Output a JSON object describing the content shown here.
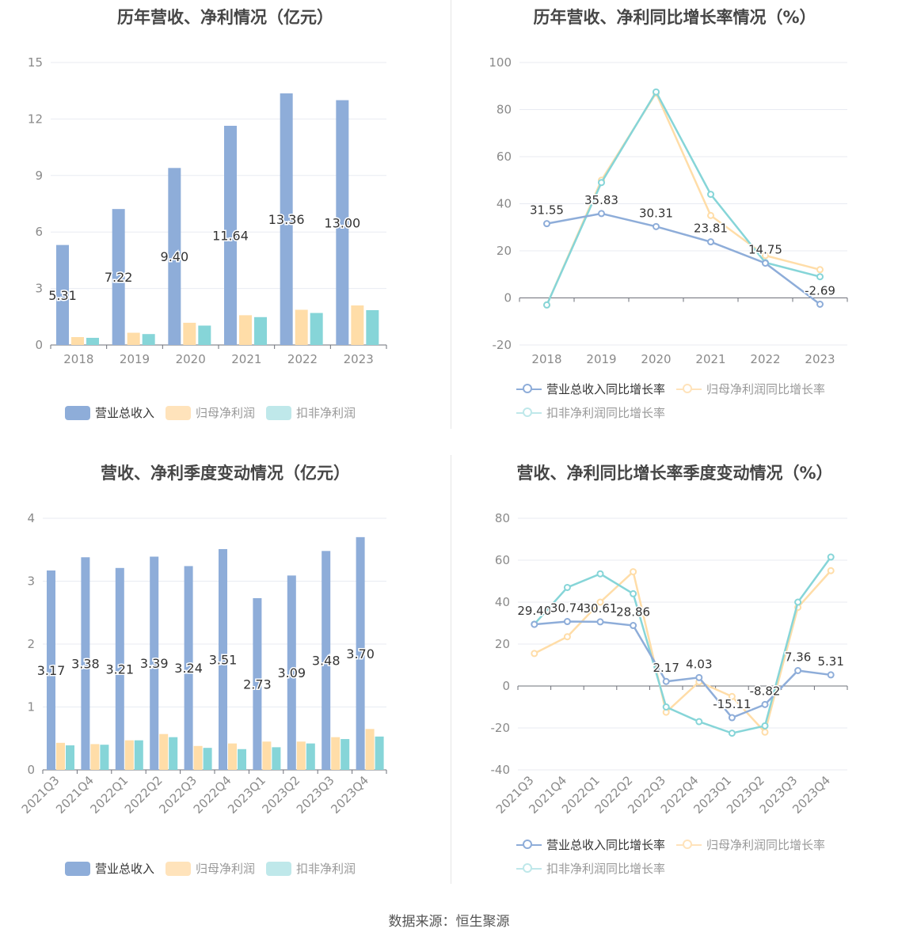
{
  "source": "数据来源：恒生聚源",
  "colors": {
    "revenue": "#8eadd9",
    "net_profit": "#ffdda8",
    "deducted_profit": "#86d5d8",
    "axis_text": "#8a8a8a",
    "grid": "#e8ebf2"
  },
  "chart_data": [
    {
      "id": "annual_amounts",
      "type": "bar",
      "title": "历年营收、净利情况（亿元）",
      "categories": [
        "2018",
        "2019",
        "2020",
        "2021",
        "2022",
        "2023"
      ],
      "ylim": [
        0,
        15
      ],
      "yticks": [
        0,
        3,
        6,
        9,
        12,
        15
      ],
      "grid": true,
      "legend_position": "bottom",
      "series": [
        {
          "name": "营业总收入",
          "values": [
            5.31,
            7.22,
            9.4,
            11.64,
            13.36,
            13.0
          ],
          "labels": [
            "5.31",
            "7.22",
            "9.40",
            "11.64",
            "13.36",
            "13.00"
          ]
        },
        {
          "name": "归母净利润",
          "values": [
            0.42,
            0.65,
            1.18,
            1.58,
            1.87,
            2.1
          ]
        },
        {
          "name": "扣非净利润",
          "values": [
            0.38,
            0.58,
            1.03,
            1.48,
            1.7,
            1.85
          ]
        }
      ]
    },
    {
      "id": "annual_growth",
      "type": "line",
      "title": "历年营收、净利同比增长率情况（%）",
      "categories": [
        "2018",
        "2019",
        "2020",
        "2021",
        "2022",
        "2023"
      ],
      "ylim": [
        -20,
        100
      ],
      "yticks": [
        -20,
        0,
        20,
        40,
        60,
        80,
        100
      ],
      "grid": true,
      "legend_position": "bottom",
      "series": [
        {
          "name": "营业总收入同比增长率",
          "values": [
            31.55,
            35.83,
            30.31,
            23.81,
            14.75,
            -2.69
          ],
          "labels": [
            "31.55",
            "35.83",
            "30.31",
            "23.81",
            "14.75",
            "-2.69"
          ]
        },
        {
          "name": "归母净利润同比增长率",
          "values": [
            -3,
            50,
            87,
            35,
            18,
            12
          ]
        },
        {
          "name": "扣非净利润同比增长率",
          "values": [
            -3,
            49,
            87.5,
            44,
            15,
            9
          ]
        }
      ]
    },
    {
      "id": "quarterly_amounts",
      "type": "bar",
      "title": "营收、净利季度变动情况（亿元）",
      "categories": [
        "2021Q3",
        "2021Q4",
        "2022Q1",
        "2022Q2",
        "2022Q3",
        "2022Q4",
        "2023Q1",
        "2023Q2",
        "2023Q3",
        "2023Q4"
      ],
      "ylim": [
        0,
        4
      ],
      "yticks": [
        0,
        1,
        2,
        3,
        4
      ],
      "grid": true,
      "legend_position": "bottom",
      "series": [
        {
          "name": "营业总收入",
          "values": [
            3.17,
            3.38,
            3.21,
            3.39,
            3.24,
            3.51,
            2.73,
            3.09,
            3.48,
            3.7
          ],
          "labels": [
            "3.17",
            "3.38",
            "3.21",
            "3.39",
            "3.24",
            "3.51",
            "2.73",
            "3.09",
            "3.48",
            "3.70"
          ]
        },
        {
          "name": "归母净利润",
          "values": [
            0.43,
            0.41,
            0.47,
            0.57,
            0.38,
            0.42,
            0.45,
            0.45,
            0.52,
            0.65
          ]
        },
        {
          "name": "扣非净利润",
          "values": [
            0.39,
            0.4,
            0.47,
            0.52,
            0.35,
            0.33,
            0.36,
            0.42,
            0.49,
            0.53
          ]
        }
      ]
    },
    {
      "id": "quarterly_growth",
      "type": "line",
      "title": "营收、净利同比增长率季度变动情况（%）",
      "categories": [
        "2021Q3",
        "2021Q4",
        "2022Q1",
        "2022Q2",
        "2022Q3",
        "2022Q4",
        "2023Q1",
        "2023Q2",
        "2023Q3",
        "2023Q4"
      ],
      "ylim": [
        -40,
        80
      ],
      "yticks": [
        -40,
        -20,
        0,
        20,
        40,
        60,
        80
      ],
      "grid": true,
      "legend_position": "bottom",
      "series": [
        {
          "name": "营业总收入同比增长率",
          "values": [
            29.4,
            30.74,
            30.61,
            28.86,
            2.17,
            4.03,
            -15.11,
            -8.82,
            7.36,
            5.31
          ],
          "labels": [
            "29.40",
            "30.74",
            "30.61",
            "28.86",
            "2.17",
            "4.03",
            "-15.11",
            "-8.82",
            "7.36",
            "5.31"
          ]
        },
        {
          "name": "归母净利润同比增长率",
          "values": [
            15.5,
            23.5,
            40,
            54.5,
            -12.5,
            2,
            -5,
            -22,
            37.5,
            55
          ]
        },
        {
          "name": "扣非净利润同比增长率",
          "values": [
            29.5,
            47,
            53.5,
            44,
            -10,
            -17,
            -22.5,
            -19,
            40,
            61.5
          ]
        }
      ]
    }
  ]
}
